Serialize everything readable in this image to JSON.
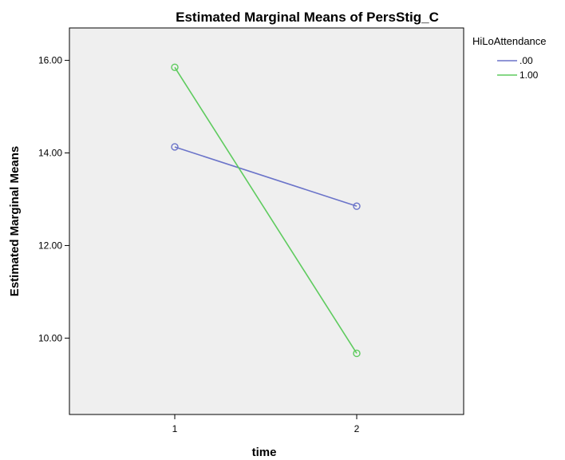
{
  "chart_data": {
    "type": "line",
    "title": "Estimated Marginal Means of PersStig_C",
    "xlabel": "time",
    "ylabel": "Estimated Marginal Means",
    "categories": [
      "1",
      "2"
    ],
    "y_ticks": [
      "10.00",
      "12.00",
      "14.00",
      "16.00"
    ],
    "y_tick_values": [
      10,
      12,
      14,
      16
    ],
    "ylim": [
      8.35,
      16.7
    ],
    "grid": false,
    "legend": {
      "title": "HiLoAttendance",
      "placement": "top-right, outside plot"
    },
    "series": [
      {
        "name": ".00",
        "color": "#6b74c9",
        "values": [
          14.13,
          12.85
        ]
      },
      {
        "name": "1.00",
        "color": "#5ecb5e",
        "values": [
          15.85,
          9.67
        ]
      }
    ],
    "plot_background": "#efefef",
    "marker": "open-circle"
  }
}
